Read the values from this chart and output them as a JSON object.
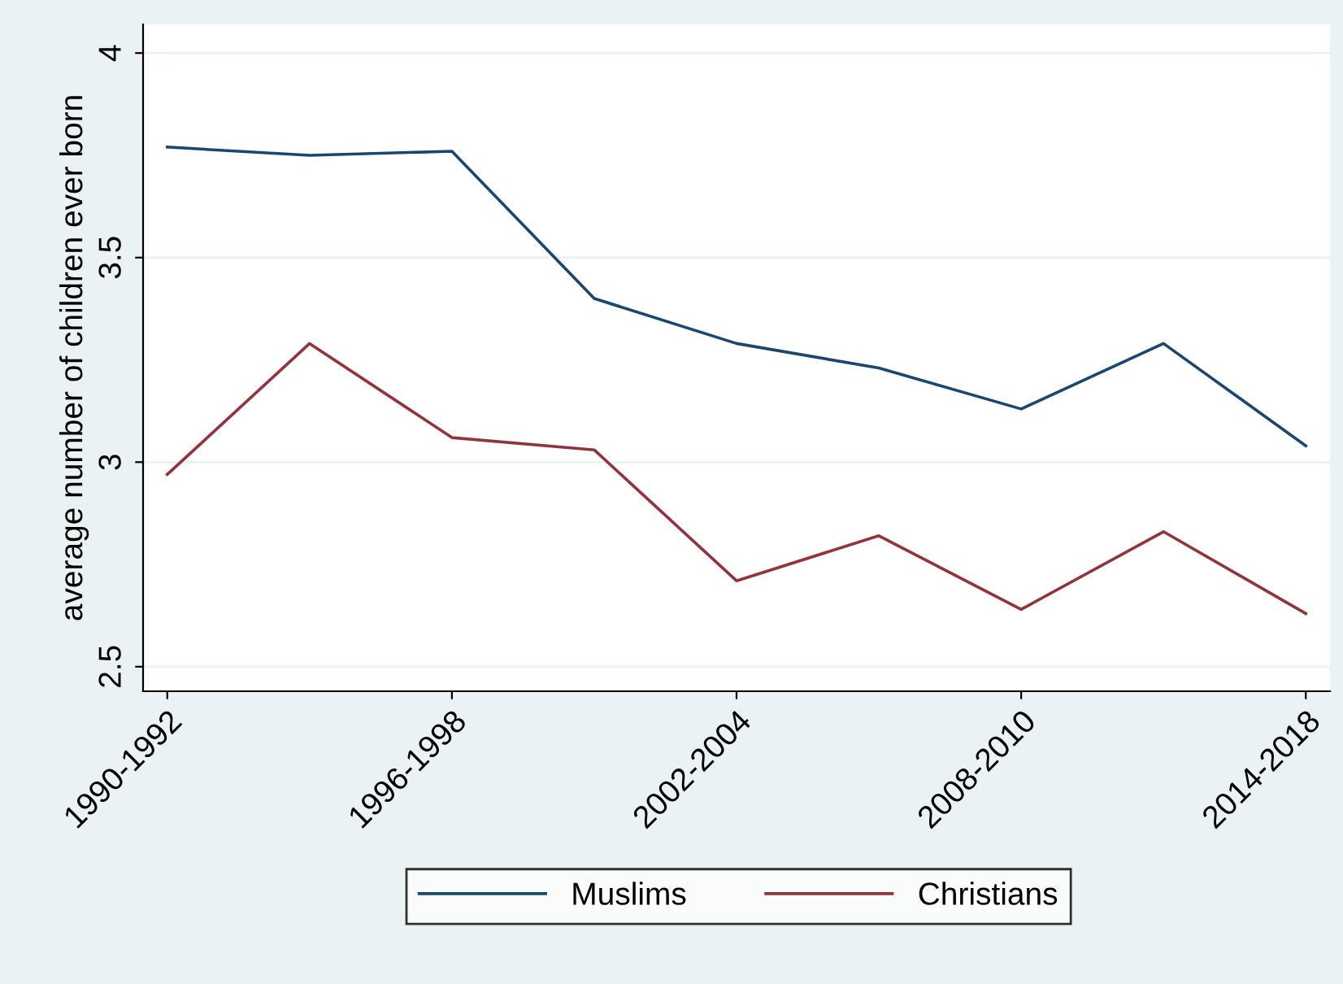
{
  "chart_data": {
    "type": "line",
    "ylabel": "average number of children ever born",
    "categories": [
      "1990-1992",
      null,
      "1996-1998",
      null,
      "2002-2004",
      null,
      "2008-2010",
      null,
      "2014-2018"
    ],
    "series": [
      {
        "name": "Muslims",
        "color": "#1a476f",
        "values": [
          3.77,
          3.75,
          3.76,
          3.4,
          3.29,
          3.23,
          3.13,
          3.29,
          3.04
        ]
      },
      {
        "name": "Christians",
        "color": "#90353b",
        "values": [
          2.97,
          3.29,
          3.06,
          3.03,
          2.71,
          2.82,
          2.64,
          2.83,
          2.63
        ]
      }
    ],
    "ylim": [
      2.44,
      4.07
    ],
    "yticks": [
      2.5,
      3,
      3.5,
      4
    ],
    "grid": "y",
    "legend": "bottom",
    "marker": "none",
    "line_style": "solid"
  }
}
